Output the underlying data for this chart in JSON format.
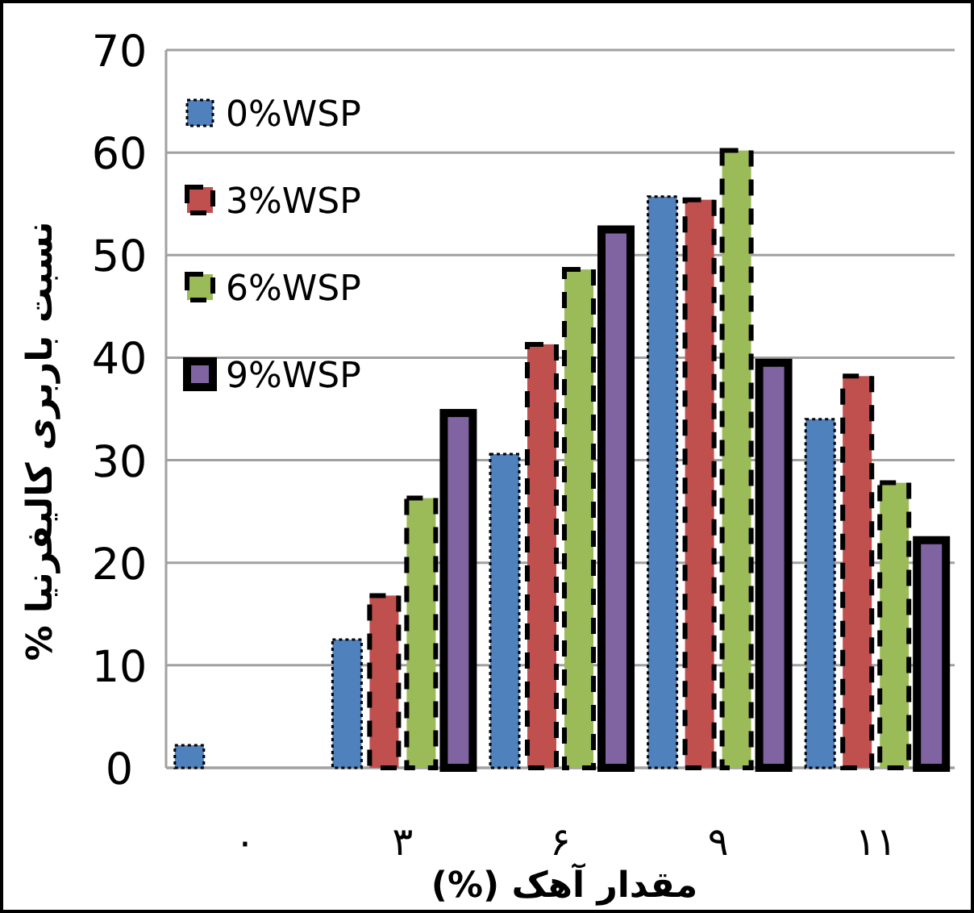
{
  "chart_data": {
    "type": "bar",
    "xlabel": "مقدار آهک (%)",
    "ylabel": "نسبت باربری کالیفرنیا %",
    "categories": [
      "۰",
      "۳",
      "۶",
      "۹",
      "۱۱"
    ],
    "series": [
      {
        "name": "0%WSP",
        "color": "#4f81bd",
        "line_style": "dotted",
        "values": [
          2.2,
          12.5,
          30.6,
          55.7,
          34.0
        ]
      },
      {
        "name": "3%WSP",
        "color": "#c0504d",
        "line_style": "dashed",
        "values": [
          0,
          16.8,
          41.3,
          55.4,
          38.2
        ]
      },
      {
        "name": "6%WSP",
        "color": "#9bbb59",
        "line_style": "dashed",
        "values": [
          0,
          26.3,
          48.6,
          60.2,
          27.8
        ]
      },
      {
        "name": "9%WSP",
        "color": "#8064a2",
        "line_style": "solid",
        "values": [
          0,
          34.6,
          52.5,
          39.5,
          22.2
        ]
      }
    ],
    "ylim": [
      0,
      70
    ],
    "yticks": [
      0,
      10,
      20,
      30,
      40,
      50,
      60,
      70
    ],
    "grid": "y",
    "legend": "top left"
  }
}
